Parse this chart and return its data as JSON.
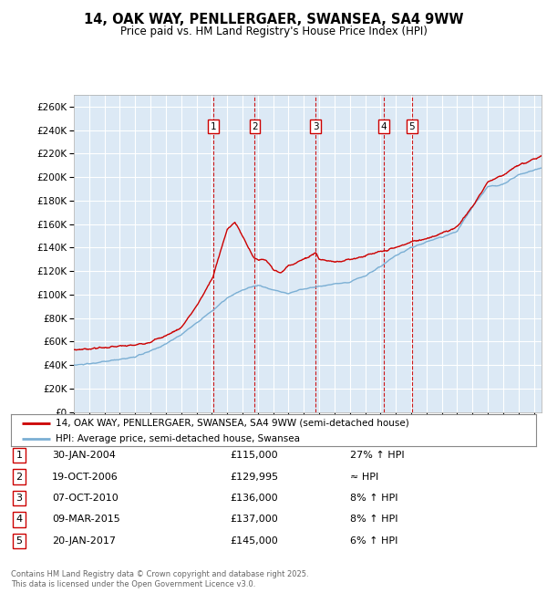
{
  "title_line1": "14, OAK WAY, PENLLERGAER, SWANSEA, SA4 9WW",
  "title_line2": "Price paid vs. HM Land Registry's House Price Index (HPI)",
  "background_color": "#ffffff",
  "plot_bg_color": "#dce9f5",
  "grid_color": "#ffffff",
  "hpi_line_color": "#7bafd4",
  "price_line_color": "#cc0000",
  "sale_vline_color": "#cc0000",
  "legend_label_price": "14, OAK WAY, PENLLERGAER, SWANSEA, SA4 9WW (semi-detached house)",
  "legend_label_hpi": "HPI: Average price, semi-detached house, Swansea",
  "footer": "Contains HM Land Registry data © Crown copyright and database right 2025.\nThis data is licensed under the Open Government Licence v3.0.",
  "sales": [
    {
      "num": 1,
      "date_label": "30-JAN-2004",
      "date_x": 2004.08,
      "price": 115000,
      "note": "27% ↑ HPI"
    },
    {
      "num": 2,
      "date_label": "19-OCT-2006",
      "date_x": 2006.8,
      "price": 129995,
      "note": "≈ HPI"
    },
    {
      "num": 3,
      "date_label": "07-OCT-2010",
      "date_x": 2010.77,
      "price": 136000,
      "note": "8% ↑ HPI"
    },
    {
      "num": 4,
      "date_label": "09-MAR-2015",
      "date_x": 2015.19,
      "price": 137000,
      "note": "8% ↑ HPI"
    },
    {
      "num": 5,
      "date_label": "20-JAN-2017",
      "date_x": 2017.05,
      "price": 145000,
      "note": "6% ↑ HPI"
    }
  ],
  "sale_price_labels": [
    "£115,000",
    "£129,995",
    "£136,000",
    "£137,000",
    "£145,000"
  ],
  "xmin": 1995.0,
  "xmax": 2025.5,
  "ylim": [
    0,
    270000
  ]
}
